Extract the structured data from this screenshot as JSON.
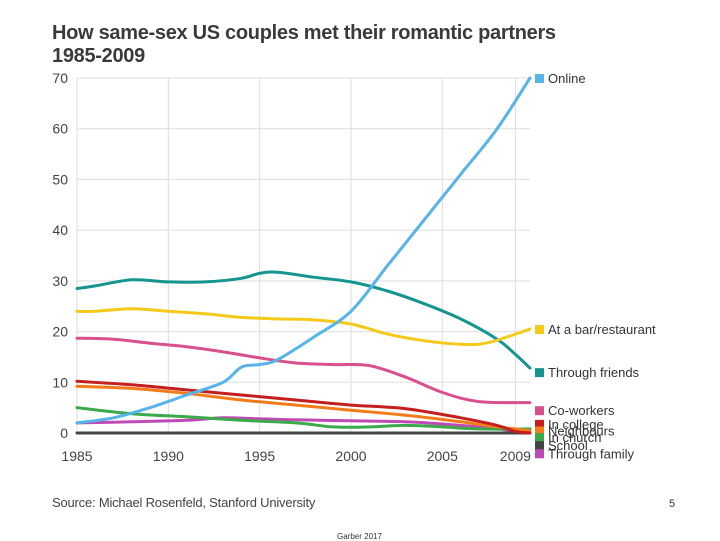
{
  "slide": {
    "footer": "Garber 2017",
    "page_number": "5"
  },
  "chart_data": {
    "type": "line",
    "title_line1": "How same-sex US couples met their romantic partners",
    "title_line2": "1985-2009",
    "source": "Source: Michael Rosenfeld, Stanford University",
    "xlim": [
      1985,
      2009.8
    ],
    "ylim": [
      0,
      70
    ],
    "xticks": [
      1985,
      1990,
      1995,
      2000,
      2005,
      2009
    ],
    "yticks": [
      0,
      10,
      20,
      30,
      40,
      50,
      60,
      70
    ],
    "grid": true,
    "legend_placement": "right",
    "series": [
      {
        "name": "Online",
        "color": "#56b4e9",
        "legend_y": 70,
        "x": [
          1985,
          1987,
          1989,
          1991,
          1993,
          1994,
          1995,
          1996,
          1998,
          2000,
          2002,
          2004,
          2006,
          2008,
          2009.8
        ],
        "y": [
          2,
          3,
          5,
          7.5,
          10,
          13,
          13.5,
          14.5,
          19,
          24,
          33,
          42,
          51,
          60,
          70
        ]
      },
      {
        "name": "At a bar/restaurant",
        "color": "#f5c91a",
        "legend_y": 20.5,
        "x": [
          1985,
          1986,
          1988,
          1990,
          1992,
          1994,
          1996,
          1998,
          2000,
          2002,
          2004,
          2006,
          2007.5,
          2009.8
        ],
        "y": [
          24,
          24,
          24.5,
          24,
          23.5,
          22.8,
          22.5,
          22.3,
          21.5,
          19.5,
          18.2,
          17.5,
          17.8,
          20.5
        ]
      },
      {
        "name": "Through friends",
        "color": "#14958f",
        "legend_y": 12,
        "x": [
          1985,
          1986,
          1988,
          1990,
          1992,
          1994,
          1995,
          1996,
          1998,
          2000,
          2002,
          2004,
          2006,
          2008,
          2009,
          2009.8
        ],
        "y": [
          28.5,
          29,
          30.2,
          29.8,
          29.8,
          30.5,
          31.5,
          31.7,
          30.7,
          29.8,
          28,
          25.5,
          22.5,
          18.5,
          15.5,
          12.8
        ]
      },
      {
        "name": "Co-workers",
        "color": "#d9508f",
        "legend_y": 4.5,
        "x": [
          1985,
          1987,
          1989,
          1991,
          1993,
          1995,
          1997,
          1999,
          2001,
          2003,
          2005,
          2007,
          2009.8
        ],
        "y": [
          18.7,
          18.5,
          17.7,
          17,
          16,
          14.8,
          13.8,
          13.5,
          13.3,
          11,
          8,
          6.2,
          6
        ]
      },
      {
        "name": "In college",
        "color": "#c41e1e",
        "legend_y": 1.8,
        "x": [
          1985,
          1988,
          1991,
          1994,
          1997,
          2000,
          2003,
          2006,
          2008,
          2009,
          2009.8
        ],
        "y": [
          10.2,
          9.5,
          8.5,
          7.5,
          6.5,
          5.5,
          4.8,
          3,
          1.5,
          0.3,
          0
        ]
      },
      {
        "name": "Neighbours",
        "color": "#f37c1a",
        "legend_y": 0.5,
        "x": [
          1985,
          1988,
          1991,
          1994,
          1997,
          2000,
          2003,
          2006,
          2008,
          2009.8
        ],
        "y": [
          9.2,
          8.8,
          7.8,
          6.5,
          5.5,
          4.5,
          3.5,
          2.2,
          1.2,
          0.5
        ]
      },
      {
        "name": "In church",
        "color": "#3aaa4a",
        "legend_y": -0.8,
        "x": [
          1985,
          1988,
          1991,
          1994,
          1997,
          1999,
          2001,
          2003,
          2005,
          2007,
          2009.8
        ],
        "y": [
          5,
          3.8,
          3.2,
          2.5,
          2,
          1.2,
          1.2,
          1.5,
          1.2,
          0.8,
          0.8
        ]
      },
      {
        "name": "School",
        "color": "#444444",
        "legend_y": -2.4,
        "x": [
          1985,
          1990,
          1995,
          2000,
          2005,
          2009.8
        ],
        "y": [
          0,
          0,
          0,
          0,
          0,
          0
        ]
      },
      {
        "name": "Through family",
        "color": "#c04ab5",
        "legend_y": -4,
        "x": [
          1985,
          1988,
          1991,
          1993,
          1995,
          1997,
          2000,
          2003,
          2006,
          2008,
          2009.8
        ],
        "y": [
          2,
          2.2,
          2.5,
          3,
          2.8,
          2.6,
          2.4,
          2.2,
          1.5,
          0.8,
          0
        ]
      }
    ]
  }
}
